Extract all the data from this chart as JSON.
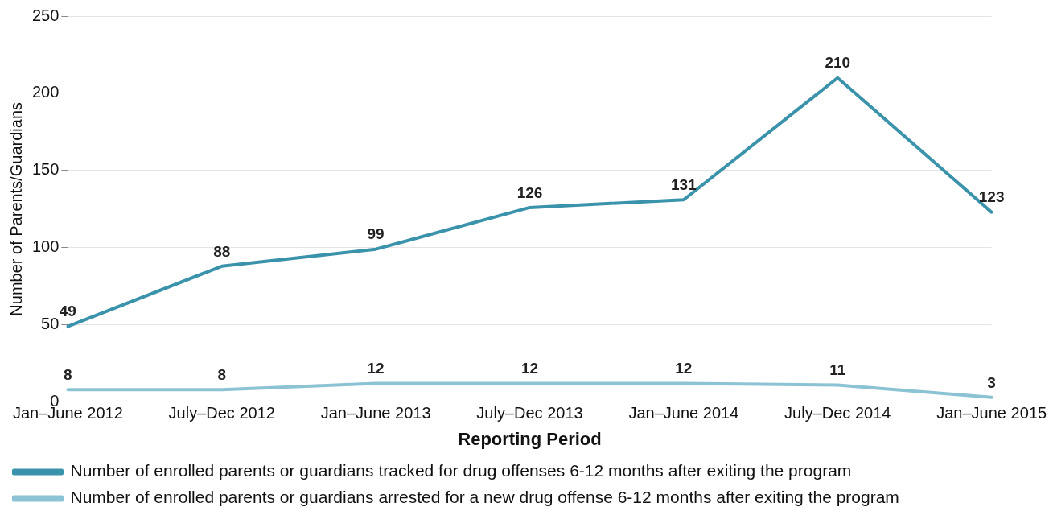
{
  "chart_data": {
    "type": "line",
    "xlabel": "Reporting Period",
    "ylabel": "Number of Parents/Guardians",
    "categories": [
      "Jan–June 2012",
      "July–Dec 2012",
      "Jan–June 2013",
      "July–Dec 2013",
      "Jan–June 2014",
      "July–Dec 2014",
      "Jan–June 2015"
    ],
    "series": [
      {
        "name": "Number of enrolled parents or guardians tracked for drug offenses 6-12 months after exiting the program",
        "color": "#3a93ab",
        "values": [
          49,
          88,
          99,
          126,
          131,
          210,
          123
        ]
      },
      {
        "name": "Number of enrolled parents or guardians arrested for a new drug offense 6-12 months after exiting the program",
        "color": "#8cc3d4",
        "values": [
          8,
          8,
          12,
          12,
          12,
          11,
          3
        ]
      }
    ],
    "ylim": [
      0,
      250
    ],
    "yticks": [
      0,
      50,
      100,
      150,
      200,
      250
    ],
    "grid": "y",
    "legend": "bottom",
    "data_labels": true,
    "marker": "none",
    "line_style": "solid"
  }
}
